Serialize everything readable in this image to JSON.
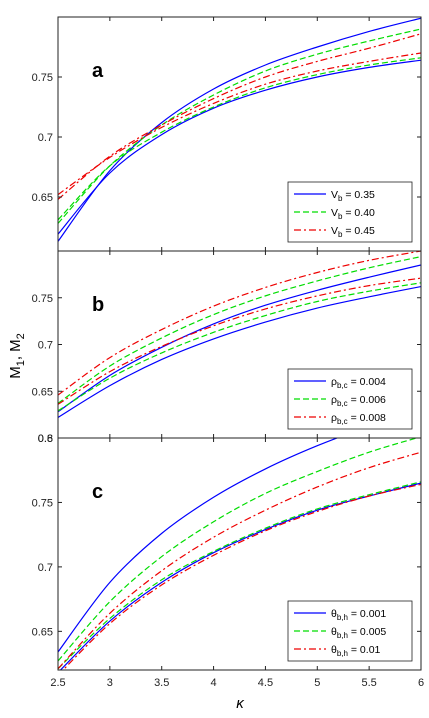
{
  "chart_data": {
    "type": "line",
    "ylabel": "M",
    "ylabel_sub1": "1",
    "ylabel_sep": ", M",
    "ylabel_sub2": "2",
    "xlabel": "κ",
    "xlim": [
      2.5,
      6
    ],
    "x_ticks": [
      "2.5",
      "3",
      "3.5",
      "4",
      "4.5",
      "5",
      "5.5",
      "6"
    ],
    "colors": {
      "blue": "#0000ff",
      "green": "#00dd00",
      "red": "#ee0000",
      "axis": "#222222"
    },
    "panels": [
      {
        "letter": "a",
        "ylim": [
          0.605,
          0.8
        ],
        "y_ticks": [
          {
            "v": 0.65,
            "t": "0.65"
          },
          {
            "v": 0.7,
            "t": "0.7"
          },
          {
            "v": 0.75,
            "t": "0.75"
          }
        ],
        "legend": [
          {
            "pre": "V",
            "sub": "b",
            "post": " = 0.35",
            "style": "solid",
            "color": "#0000ff"
          },
          {
            "pre": "V",
            "sub": "b",
            "post": " = 0.40",
            "style": "dashed",
            "color": "#00dd00"
          },
          {
            "pre": "V",
            "sub": "b",
            "post": " = 0.45",
            "style": "dashdot",
            "color": "#ee0000"
          }
        ],
        "x": [
          2.5,
          3,
          3.5,
          4,
          4.5,
          5,
          5.5,
          6
        ],
        "series": [
          {
            "color": "#0000ff",
            "style": "solid",
            "values": [
              0.613,
              0.672,
              0.712,
              0.74,
              0.76,
              0.775,
              0.788,
              0.799
            ]
          },
          {
            "color": "#0000ff",
            "style": "solid",
            "values": [
              0.619,
              0.67,
              0.702,
              0.724,
              0.739,
              0.75,
              0.758,
              0.764
            ]
          },
          {
            "color": "#00dd00",
            "style": "dashed",
            "values": [
              0.628,
              0.676,
              0.71,
              0.735,
              0.755,
              0.769,
              0.78,
              0.79
            ]
          },
          {
            "color": "#00dd00",
            "style": "dashed",
            "values": [
              0.631,
              0.676,
              0.704,
              0.725,
              0.741,
              0.752,
              0.76,
              0.766
            ]
          },
          {
            "color": "#ee0000",
            "style": "dashdot",
            "values": [
              0.648,
              0.684,
              0.71,
              0.732,
              0.75,
              0.763,
              0.774,
              0.786
            ]
          },
          {
            "color": "#ee0000",
            "style": "dashdot",
            "values": [
              0.652,
              0.683,
              0.708,
              0.728,
              0.744,
              0.755,
              0.763,
              0.77
            ]
          }
        ]
      },
      {
        "letter": "b",
        "ylim": [
          0.6,
          0.8
        ],
        "y_ticks": [
          {
            "v": 0.65,
            "t": "0.65"
          },
          {
            "v": 0.7,
            "t": "0.7"
          },
          {
            "v": 0.75,
            "t": "0.75"
          }
        ],
        "legend": [
          {
            "pre": "ρ",
            "sub": "b,c",
            "post": " = 0.004",
            "style": "solid",
            "color": "#0000ff"
          },
          {
            "pre": "ρ",
            "sub": "b,c",
            "post": " = 0.006",
            "style": "dashed",
            "color": "#00dd00"
          },
          {
            "pre": "ρ",
            "sub": "b,c",
            "post": " = 0.008",
            "style": "dashdot",
            "color": "#ee0000"
          }
        ],
        "x": [
          2.5,
          3,
          3.5,
          4,
          4.5,
          5,
          5.5,
          6
        ],
        "series": [
          {
            "color": "#0000ff",
            "style": "solid",
            "values": [
              0.628,
              0.667,
              0.697,
              0.722,
              0.742,
              0.758,
              0.772,
              0.785
            ]
          },
          {
            "color": "#0000ff",
            "style": "solid",
            "values": [
              0.622,
              0.656,
              0.684,
              0.706,
              0.724,
              0.739,
              0.751,
              0.762
            ]
          },
          {
            "color": "#00dd00",
            "style": "dashed",
            "values": [
              0.637,
              0.677,
              0.707,
              0.732,
              0.752,
              0.768,
              0.782,
              0.794
            ]
          },
          {
            "color": "#00dd00",
            "style": "dashed",
            "values": [
              0.629,
              0.664,
              0.691,
              0.713,
              0.731,
              0.746,
              0.757,
              0.766
            ]
          },
          {
            "color": "#ee0000",
            "style": "dashdot",
            "values": [
              0.646,
              0.686,
              0.716,
              0.741,
              0.761,
              0.777,
              0.79,
              0.8
            ]
          },
          {
            "color": "#ee0000",
            "style": "dashdot",
            "values": [
              0.636,
              0.671,
              0.698,
              0.72,
              0.738,
              0.752,
              0.763,
              0.771
            ]
          }
        ]
      },
      {
        "letter": "c",
        "ylim": [
          0.62,
          0.8
        ],
        "y_ticks": [
          {
            "v": 0.65,
            "t": "0.65"
          },
          {
            "v": 0.7,
            "t": "0.7"
          },
          {
            "v": 0.75,
            "t": "0.75"
          },
          {
            "v": 0.8,
            "t": "0.8"
          }
        ],
        "top_tick": "0.6",
        "legend": [
          {
            "pre": "θ",
            "sub": "b,h",
            "post": " = 0.001",
            "style": "solid",
            "color": "#0000ff"
          },
          {
            "pre": "θ",
            "sub": "b,h",
            "post": " = 0.005",
            "style": "dashed",
            "color": "#00dd00"
          },
          {
            "pre": "θ",
            "sub": "b,h",
            "post": " = 0.01",
            "style": "dashdot",
            "color": "#ee0000"
          }
        ],
        "x": [
          2.5,
          3,
          3.5,
          4,
          4.5,
          5,
          5.5,
          6
        ],
        "series": [
          {
            "color": "#0000ff",
            "style": "solid",
            "values": [
              0.634,
              0.688,
              0.726,
              0.754,
              0.776,
              0.794,
              0.809,
              0.822
            ]
          },
          {
            "color": "#0000ff",
            "style": "solid",
            "values": [
              0.618,
              0.658,
              0.688,
              0.711,
              0.729,
              0.744,
              0.755,
              0.765
            ]
          },
          {
            "color": "#00dd00",
            "style": "dashed",
            "values": [
              0.627,
              0.673,
              0.708,
              0.735,
              0.757,
              0.774,
              0.789,
              0.801
            ]
          },
          {
            "color": "#00dd00",
            "style": "dashed",
            "values": [
              0.621,
              0.66,
              0.69,
              0.712,
              0.73,
              0.745,
              0.756,
              0.766
            ]
          },
          {
            "color": "#ee0000",
            "style": "dashdot",
            "values": [
              0.621,
              0.664,
              0.697,
              0.723,
              0.744,
              0.762,
              0.777,
              0.789
            ]
          },
          {
            "color": "#ee0000",
            "style": "dashdot",
            "values": [
              0.616,
              0.656,
              0.686,
              0.709,
              0.728,
              0.743,
              0.755,
              0.764
            ]
          }
        ]
      }
    ]
  }
}
